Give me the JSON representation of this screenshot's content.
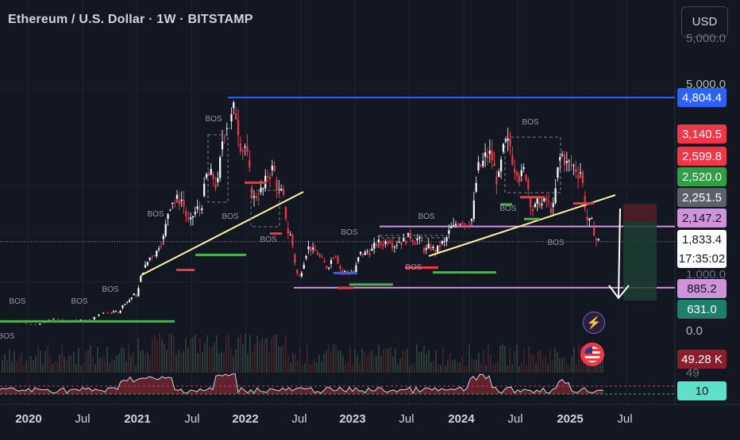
{
  "header": {
    "title": "Ethereum / U.S. Dollar · 1W · BITSTAMP",
    "currency_button": "USD"
  },
  "price_axis": {
    "top_tick_partial": "5,000.0",
    "tick_5000": "5,000.0",
    "tick_0": "0.0",
    "tick_1000_partial": "1,000.0",
    "volume_tick_partial": "49",
    "labels": [
      {
        "key": "high_line",
        "text": "4,804.4",
        "color": "#2962ff"
      },
      {
        "key": "r1",
        "text": "3,140.5",
        "color": "#f23645"
      },
      {
        "key": "r2",
        "text": "2,599.8",
        "color": "#f23645"
      },
      {
        "key": "g1",
        "text": "2,520.0",
        "color": "#2ea043"
      },
      {
        "key": "gray1",
        "text": "2,251.5",
        "color": "#5d606b"
      },
      {
        "key": "purple_upper",
        "text": "2,147.2",
        "color": "#ce93d8"
      },
      {
        "key": "purple_lower",
        "text": "885.2",
        "color": "#ce93d8"
      },
      {
        "key": "teal",
        "text": "631.0",
        "color": "#1b7f6b"
      },
      {
        "key": "volume",
        "text": "49.28 K",
        "color": "#8b1e2a"
      },
      {
        "key": "rsi",
        "text": "10",
        "color": "#5fe0c8"
      }
    ],
    "current_price": "1,833.4",
    "countdown": "17:35:02"
  },
  "time_axis": [
    "2020",
    "Jul",
    "2021",
    "Jul",
    "2022",
    "Jul",
    "2023",
    "Jul",
    "2024",
    "Jul",
    "2025",
    "Jul"
  ],
  "annotations": {
    "bos": "BOS"
  },
  "chart_data": {
    "type": "candlestick",
    "title": "Ethereum / U.S. Dollar · 1W · BITSTAMP",
    "ylim": [
      0,
      5000
    ],
    "x_range": [
      "2019-10",
      "2025-10"
    ],
    "series": [
      {
        "name": "ETHUSD",
        "x": [
          "2019-10",
          "2019-12",
          "2020-02",
          "2020-04",
          "2020-06",
          "2020-08",
          "2020-10",
          "2020-11",
          "2020-12",
          "2021-01",
          "2021-02",
          "2021-03",
          "2021-04",
          "2021-05",
          "2021-06",
          "2021-07",
          "2021-08",
          "2021-09",
          "2021-10",
          "2021-11",
          "2021-12",
          "2022-01",
          "2022-02",
          "2022-03",
          "2022-04",
          "2022-05",
          "2022-06",
          "2022-07",
          "2022-08",
          "2022-09",
          "2022-10",
          "2022-11",
          "2022-12",
          "2023-01",
          "2023-02",
          "2023-03",
          "2023-04",
          "2023-05",
          "2023-06",
          "2023-07",
          "2023-08",
          "2023-09",
          "2023-10",
          "2023-11",
          "2023-12",
          "2024-01",
          "2024-02",
          "2024-03",
          "2024-04",
          "2024-05",
          "2024-06",
          "2024-07",
          "2024-08",
          "2024-09",
          "2024-10",
          "2024-11",
          "2024-12",
          "2025-01",
          "2025-02",
          "2025-03"
        ],
        "close": [
          180,
          130,
          230,
          200,
          230,
          380,
          390,
          600,
          740,
          1300,
          1600,
          1900,
          2700,
          2700,
          2200,
          2500,
          3200,
          3000,
          4300,
          4500,
          3800,
          2700,
          2900,
          3300,
          2800,
          1950,
          1100,
          1700,
          1600,
          1330,
          1600,
          1200,
          1200,
          1600,
          1650,
          1800,
          1900,
          1850,
          1900,
          1880,
          1650,
          1670,
          1800,
          2100,
          2300,
          2300,
          3400,
          3600,
          3100,
          3800,
          3400,
          3250,
          2500,
          2600,
          2500,
          3600,
          3400,
          3300,
          2200,
          1833.4
        ]
      }
    ],
    "horizontal_levels": [
      4804.4,
      3140.5,
      2599.8,
      2520.0,
      2251.5,
      2147.2,
      885.2,
      631.0
    ],
    "volume_last": "49.28 K",
    "rsi_last": 10
  }
}
